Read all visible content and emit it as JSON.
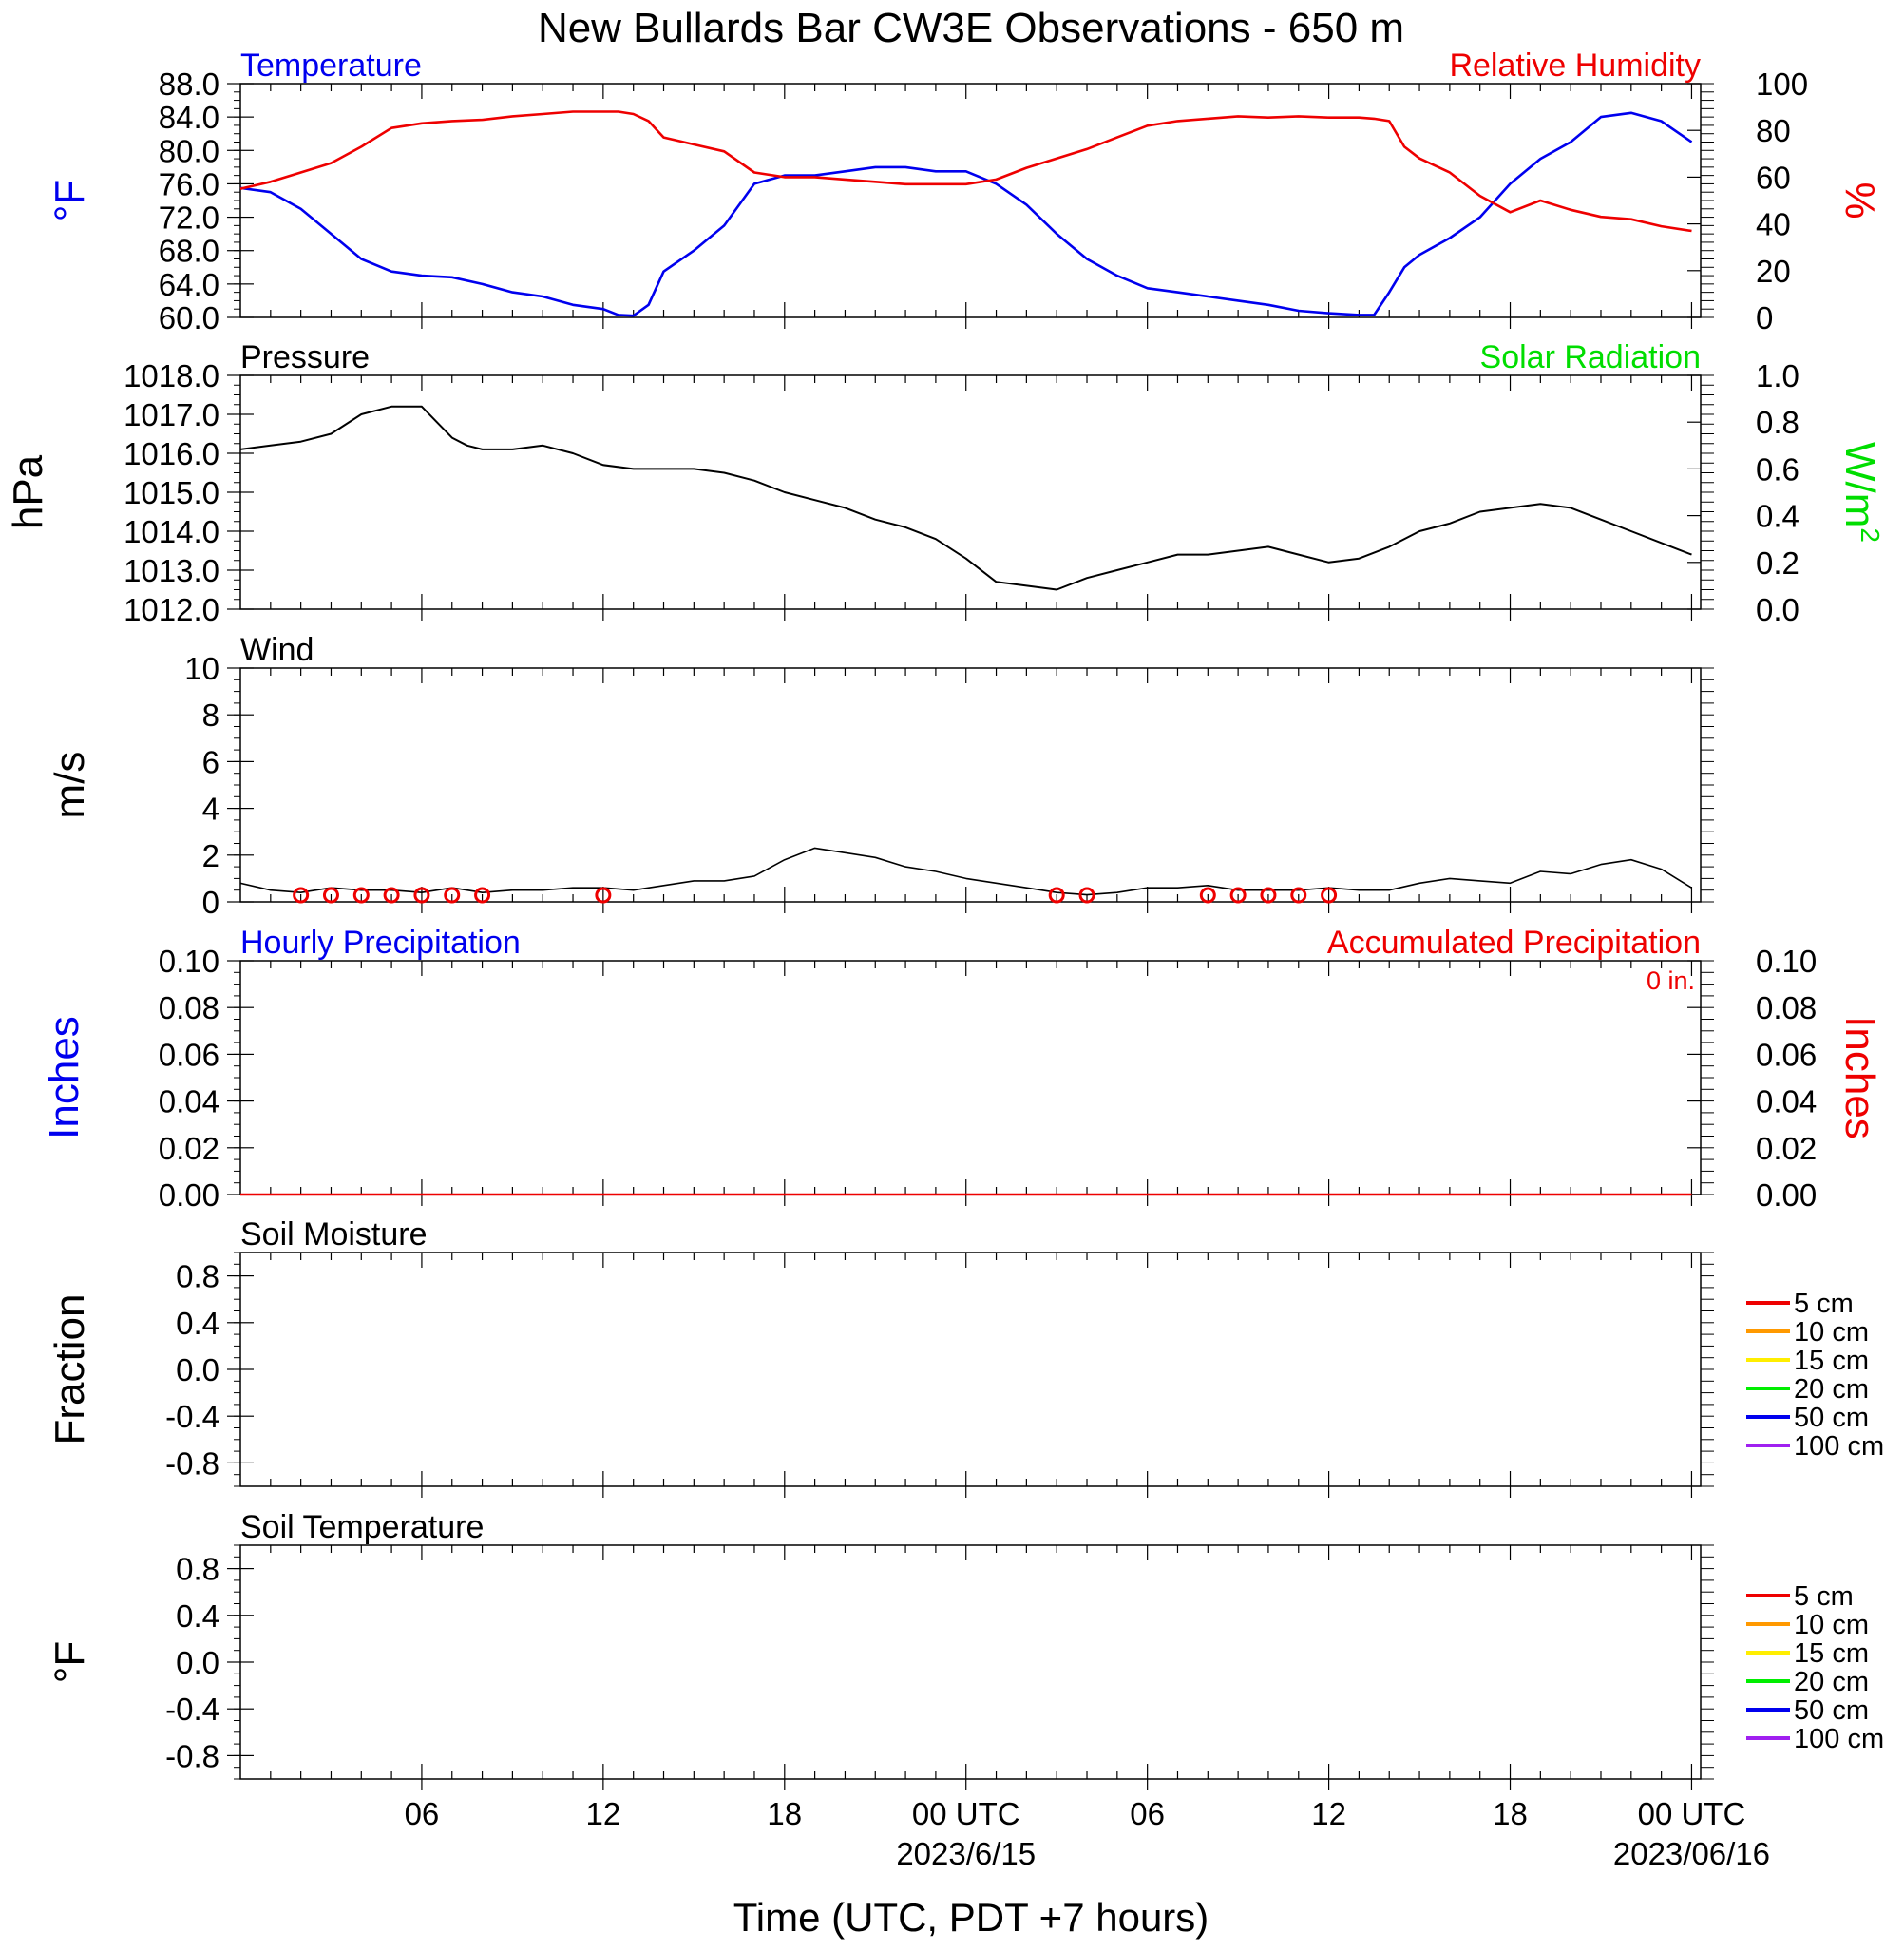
{
  "title": "New Bullards Bar CW3E Observations - 650 m",
  "x_axis": {
    "label": "Time (UTC, PDT +7 hours)",
    "ticks": [
      {
        "hour": 6,
        "label": "06",
        "sub": ""
      },
      {
        "hour": 12,
        "label": "12",
        "sub": ""
      },
      {
        "hour": 18,
        "label": "18",
        "sub": ""
      },
      {
        "hour": 24,
        "label": "00 UTC",
        "sub": "2023/6/15"
      },
      {
        "hour": 30,
        "label": "06",
        "sub": ""
      },
      {
        "hour": 36,
        "label": "12",
        "sub": ""
      },
      {
        "hour": 42,
        "label": "18",
        "sub": ""
      },
      {
        "hour": 48,
        "label": "00 UTC",
        "sub": "2023/06/16"
      }
    ]
  },
  "colors": {
    "blue": "#0000ee",
    "red": "#ee0000",
    "green": "#00dd00",
    "black": "#000000"
  },
  "chart_data": [
    {
      "type": "line",
      "panel": "temperature-humidity",
      "left_title": "Temperature",
      "right_title": "Relative Humidity",
      "left_unit": "°F",
      "right_unit": "%",
      "left_ylim": [
        60,
        88
      ],
      "right_ylim": [
        0,
        100
      ],
      "left_ticks": [
        "88.0",
        "84.0",
        "80.0",
        "76.0",
        "72.0",
        "68.0",
        "64.0",
        "60.0"
      ],
      "right_ticks": [
        "100",
        "80",
        "60",
        "40",
        "20",
        "0"
      ],
      "series": [
        {
          "name": "Temperature",
          "axis": "left",
          "color": "#0000ee",
          "x": [
            0,
            1,
            2,
            3,
            4,
            5,
            6,
            7,
            8,
            9,
            10,
            11,
            12,
            12.5,
            13,
            13.5,
            14,
            15,
            16,
            17,
            18,
            19,
            20,
            21,
            22,
            23,
            24,
            25,
            26,
            27,
            28,
            29,
            30,
            31,
            32,
            33,
            34,
            35,
            36,
            37,
            37.5,
            38,
            38.5,
            39,
            40,
            41,
            42,
            43,
            44,
            45,
            46,
            47,
            48
          ],
          "y": [
            75.5,
            75,
            73,
            70,
            67,
            65.5,
            65,
            64.8,
            64,
            63,
            62.5,
            61.5,
            61,
            60.3,
            60.2,
            61.5,
            65.5,
            68,
            71,
            76,
            77,
            77,
            77.5,
            78,
            78,
            77.5,
            77.5,
            76,
            73.5,
            70,
            67,
            65,
            63.5,
            63,
            62.5,
            62,
            61.5,
            60.8,
            60.5,
            60.3,
            60.3,
            63,
            66,
            67.5,
            69.5,
            72,
            76,
            79,
            81,
            84,
            84.5,
            83.5,
            81
          ]
        },
        {
          "name": "Relative Humidity",
          "axis": "right",
          "color": "#ee0000",
          "x": [
            0,
            1,
            2,
            3,
            4,
            5,
            6,
            7,
            8,
            9,
            10,
            11,
            12,
            12.5,
            13,
            13.5,
            14,
            15,
            16,
            17,
            18,
            19,
            20,
            21,
            22,
            23,
            24,
            25,
            26,
            27,
            28,
            29,
            30,
            31,
            32,
            33,
            34,
            35,
            36,
            37,
            37.5,
            38,
            38.5,
            39,
            40,
            41,
            42,
            43,
            44,
            45,
            46,
            47,
            48
          ],
          "y": [
            55,
            58,
            62,
            66,
            73,
            81,
            83,
            84,
            84.5,
            86,
            87,
            88,
            88,
            88,
            87,
            84,
            77,
            74,
            71,
            62,
            60,
            60,
            59,
            58,
            57,
            57,
            57,
            59,
            64,
            68,
            72,
            77,
            82,
            84,
            85,
            86,
            85.5,
            86,
            85.5,
            85.5,
            85,
            84,
            73,
            68,
            62,
            52,
            45,
            50,
            46,
            43,
            42,
            39,
            37
          ]
        }
      ]
    },
    {
      "type": "line",
      "panel": "pressure",
      "left_title": "Pressure",
      "right_title": "Solar Radiation",
      "left_unit": "hPa",
      "right_unit": "W/m",
      "right_unit_sup": "2",
      "left_ylim": [
        1012,
        1018
      ],
      "right_ylim": [
        0,
        1
      ],
      "left_ticks": [
        "1018.0",
        "1017.0",
        "1016.0",
        "1015.0",
        "1014.0",
        "1013.0",
        "1012.0"
      ],
      "right_ticks": [
        "1.0",
        "0.8",
        "0.6",
        "0.4",
        "0.2",
        "0.0"
      ],
      "series": [
        {
          "name": "Pressure",
          "axis": "left",
          "color": "#000000",
          "x": [
            0,
            1,
            2,
            3,
            4,
            5,
            6,
            6.5,
            7,
            7.5,
            8,
            9,
            10,
            11,
            12,
            13,
            14,
            15,
            16,
            17,
            18,
            19,
            20,
            21,
            22,
            23,
            24,
            25,
            26,
            27,
            28,
            29,
            30,
            31,
            32,
            33,
            34,
            35,
            36,
            37,
            38,
            39,
            40,
            41,
            42,
            43,
            44,
            45,
            46,
            47,
            48
          ],
          "y": [
            1016.1,
            1016.2,
            1016.3,
            1016.5,
            1017.0,
            1017.2,
            1017.2,
            1016.8,
            1016.4,
            1016.2,
            1016.1,
            1016.1,
            1016.2,
            1016.0,
            1015.7,
            1015.6,
            1015.6,
            1015.6,
            1015.5,
            1015.3,
            1015.0,
            1014.8,
            1014.6,
            1014.3,
            1014.1,
            1013.8,
            1013.3,
            1012.7,
            1012.6,
            1012.5,
            1012.8,
            1013.0,
            1013.2,
            1013.4,
            1013.4,
            1013.5,
            1013.6,
            1013.4,
            1013.2,
            1013.3,
            1013.6,
            1014.0,
            1014.2,
            1014.5,
            1014.6,
            1014.7,
            1014.6,
            1014.3,
            1014.0,
            1013.7,
            1013.4
          ]
        }
      ]
    },
    {
      "type": "line",
      "panel": "wind",
      "left_title": "Wind",
      "left_unit": "m/s",
      "left_ylim": [
        0,
        10
      ],
      "left_ticks": [
        "10",
        "8",
        "6",
        "4",
        "2",
        "0"
      ],
      "series": [
        {
          "name": "Wind speed",
          "axis": "left",
          "color": "#000000",
          "x": [
            0,
            1,
            2,
            3,
            4,
            5,
            6,
            7,
            8,
            9,
            10,
            11,
            12,
            13,
            14,
            15,
            16,
            17,
            18,
            19,
            20,
            21,
            22,
            23,
            24,
            25,
            26,
            27,
            28,
            29,
            30,
            31,
            32,
            33,
            34,
            35,
            36,
            37,
            38,
            39,
            40,
            41,
            42,
            43,
            44,
            45,
            46,
            47,
            48
          ],
          "y": [
            0.8,
            0.5,
            0.4,
            0.6,
            0.5,
            0.5,
            0.4,
            0.6,
            0.4,
            0.5,
            0.5,
            0.6,
            0.6,
            0.5,
            0.7,
            0.9,
            0.9,
            1.1,
            1.8,
            2.3,
            2.1,
            1.9,
            1.5,
            1.3,
            1.0,
            0.8,
            0.6,
            0.4,
            0.3,
            0.4,
            0.6,
            0.6,
            0.7,
            0.5,
            0.5,
            0.5,
            0.6,
            0.5,
            0.5,
            0.8,
            1.0,
            0.9,
            0.8,
            1.3,
            1.2,
            1.6,
            1.8,
            1.4,
            0.6
          ]
        }
      ],
      "calm_markers_x": [
        2,
        3,
        4,
        5,
        6,
        7,
        8,
        12,
        27,
        28,
        32,
        33,
        34,
        35,
        36
      ]
    },
    {
      "type": "line",
      "panel": "precipitation",
      "left_title": "Hourly Precipitation",
      "right_title": "Accumulated Precipitation",
      "right_note": "0 in.",
      "left_unit": "Inches",
      "right_unit": "Inches",
      "left_ylim": [
        0,
        0.1
      ],
      "right_ylim": [
        0,
        0.1
      ],
      "left_ticks": [
        "0.10",
        "0.08",
        "0.06",
        "0.04",
        "0.02",
        "0.00"
      ],
      "right_ticks": [
        "0.10",
        "0.08",
        "0.06",
        "0.04",
        "0.02",
        "0.00"
      ],
      "series": [
        {
          "name": "Accumulated Precipitation",
          "axis": "right",
          "color": "#ee0000",
          "x": [
            0,
            48
          ],
          "y": [
            0,
            0
          ]
        }
      ]
    },
    {
      "type": "line",
      "panel": "soil-moisture",
      "left_title": "Soil Moisture",
      "left_unit": "Fraction",
      "left_ylim": [
        -1,
        1
      ],
      "left_ticks": [
        "0.8",
        "0.4",
        "0.0",
        "-0.4",
        "-0.8"
      ],
      "legend": [
        {
          "label": "5 cm",
          "color": "#ee0000"
        },
        {
          "label": "10 cm",
          "color": "#ff9900"
        },
        {
          "label": "15 cm",
          "color": "#ffee00"
        },
        {
          "label": "20 cm",
          "color": "#00ee00"
        },
        {
          "label": "50 cm",
          "color": "#0000ee"
        },
        {
          "label": "100 cm",
          "color": "#a020f0"
        }
      ],
      "series": []
    },
    {
      "type": "line",
      "panel": "soil-temperature",
      "left_title": "Soil Temperature",
      "left_unit": "°F",
      "left_ylim": [
        -1,
        1
      ],
      "left_ticks": [
        "0.8",
        "0.4",
        "0.0",
        "-0.4",
        "-0.8"
      ],
      "legend": [
        {
          "label": "5 cm",
          "color": "#ee0000"
        },
        {
          "label": "10 cm",
          "color": "#ff9900"
        },
        {
          "label": "15 cm",
          "color": "#ffee00"
        },
        {
          "label": "20 cm",
          "color": "#00ee00"
        },
        {
          "label": "50 cm",
          "color": "#0000ee"
        },
        {
          "label": "100 cm",
          "color": "#a020f0"
        }
      ],
      "series": []
    }
  ]
}
